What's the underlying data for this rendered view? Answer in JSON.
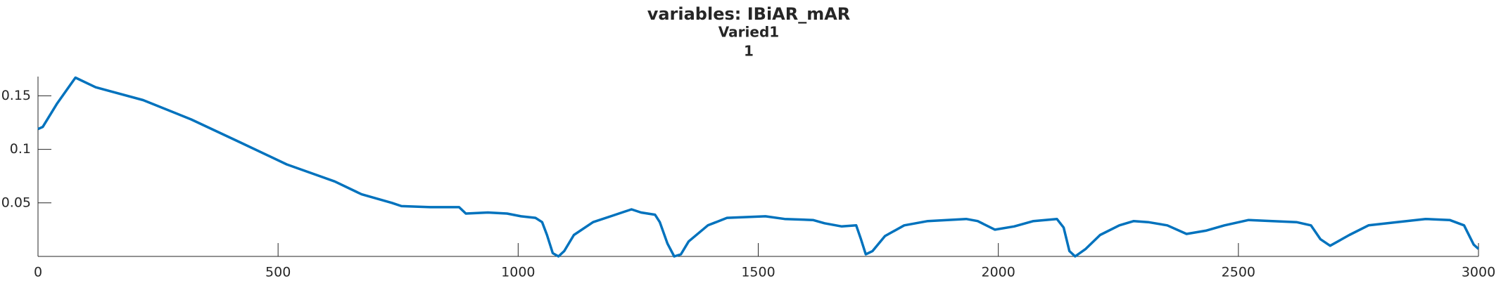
{
  "chart_data": {
    "type": "line",
    "title": "variables: IBiAR_mAR",
    "subtitle": "Varied1",
    "subtitle2": "1",
    "x": [
      0,
      10,
      40,
      78,
      120,
      219,
      319,
      419,
      518,
      618,
      674,
      737,
      757,
      817,
      877,
      891,
      937,
      977,
      1006,
      1036,
      1050,
      1060,
      1072,
      1084,
      1096,
      1116,
      1156,
      1196,
      1236,
      1256,
      1285,
      1295,
      1311,
      1325,
      1339,
      1355,
      1395,
      1435,
      1515,
      1555,
      1614,
      1638,
      1674,
      1704,
      1714,
      1724,
      1738,
      1764,
      1804,
      1853,
      1933,
      1957,
      1993,
      2033,
      2073,
      2122,
      2136,
      2148,
      2160,
      2182,
      2212,
      2252,
      2282,
      2312,
      2352,
      2392,
      2432,
      2471,
      2521,
      2571,
      2621,
      2651,
      2671,
      2691,
      2731,
      2771,
      2830,
      2890,
      2940,
      2970,
      2990,
      3000
    ],
    "series": [
      {
        "name": "IBiAR_mAR",
        "color": "#0072bd",
        "values": [
          0.119,
          0.121,
          0.143,
          0.167,
          0.158,
          0.146,
          0.128,
          0.107,
          0.086,
          0.07,
          0.058,
          0.05,
          0.047,
          0.046,
          0.046,
          0.04,
          0.041,
          0.04,
          0.0375,
          0.036,
          0.032,
          0.02,
          0.003,
          0.0,
          0.005,
          0.02,
          0.032,
          0.038,
          0.044,
          0.041,
          0.039,
          0.032,
          0.012,
          0.0,
          0.002,
          0.014,
          0.029,
          0.036,
          0.0375,
          0.035,
          0.034,
          0.031,
          0.028,
          0.029,
          0.016,
          0.002,
          0.005,
          0.019,
          0.029,
          0.033,
          0.035,
          0.033,
          0.025,
          0.028,
          0.033,
          0.035,
          0.027,
          0.005,
          0.0,
          0.007,
          0.02,
          0.029,
          0.033,
          0.032,
          0.029,
          0.021,
          0.024,
          0.029,
          0.034,
          0.033,
          0.032,
          0.029,
          0.016,
          0.01,
          0.02,
          0.029,
          0.032,
          0.035,
          0.034,
          0.029,
          0.011,
          0.007
        ]
      }
    ],
    "xlim": [
      0,
      3000
    ],
    "xticks": [
      0,
      500,
      1000,
      1500,
      2000,
      2500,
      3000
    ],
    "ylim": [
      0,
      0.168
    ],
    "yticks": [
      0.05,
      0.1,
      0.15
    ]
  }
}
